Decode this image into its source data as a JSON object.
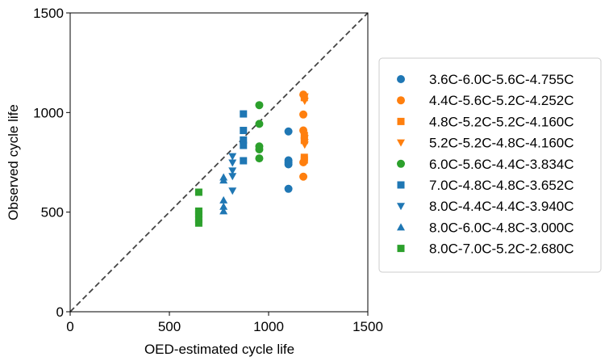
{
  "chart_data": {
    "type": "scatter",
    "title": "",
    "xlabel": "OED-estimated cycle life",
    "ylabel": "Observed cycle life",
    "xlim": [
      0,
      1500
    ],
    "ylim": [
      0,
      1500
    ],
    "xticks": [
      "0",
      "500",
      "1000",
      "1500"
    ],
    "yticks": [
      "0",
      "500",
      "1000",
      "1500"
    ],
    "grid": false,
    "legend_position": "right",
    "reference_line": {
      "style": "dashed",
      "color": "#444444",
      "from": [
        0,
        0
      ],
      "to": [
        1500,
        1500
      ]
    },
    "series": [
      {
        "name": "3.6C-6.0C-5.6C-4.755C",
        "marker": "circle",
        "color": "#1f77b4",
        "points": [
          [
            1100,
            905
          ],
          [
            1100,
            760
          ],
          [
            1100,
            750
          ],
          [
            1100,
            740
          ],
          [
            1100,
            617
          ]
        ]
      },
      {
        "name": "4.4C-5.6C-5.2C-4.252C",
        "marker": "circle",
        "color": "#ff7f0e",
        "points": [
          [
            1175,
            1090
          ],
          [
            1175,
            990
          ],
          [
            1175,
            910
          ],
          [
            1175,
            750
          ],
          [
            1175,
            678
          ]
        ]
      },
      {
        "name": "4.8C-5.2C-5.2C-4.160C",
        "marker": "square",
        "color": "#ff7f0e",
        "points": [
          [
            1180,
            1075
          ],
          [
            1180,
            885
          ],
          [
            1180,
            860
          ],
          [
            1180,
            775
          ],
          [
            1180,
            762
          ]
        ]
      },
      {
        "name": "5.2C-5.2C-4.8C-4.160C",
        "marker": "triangle-down",
        "color": "#ff7f0e",
        "points": [
          [
            1182,
            1080
          ],
          [
            1182,
            1058
          ],
          [
            1182,
            870
          ],
          [
            1182,
            850
          ],
          [
            1182,
            838
          ]
        ]
      },
      {
        "name": "6.0C-5.6C-4.4C-3.834C",
        "marker": "circle",
        "color": "#2ca02c",
        "points": [
          [
            953,
            1037
          ],
          [
            953,
            943
          ],
          [
            953,
            830
          ],
          [
            953,
            815
          ],
          [
            953,
            770
          ]
        ]
      },
      {
        "name": "7.0C-4.8C-4.8C-3.652C",
        "marker": "square",
        "color": "#1f77b4",
        "points": [
          [
            873,
            993
          ],
          [
            873,
            910
          ],
          [
            873,
            862
          ],
          [
            873,
            835
          ],
          [
            873,
            758
          ]
        ]
      },
      {
        "name": "8.0C-4.4C-4.4C-3.940C",
        "marker": "triangle-down",
        "color": "#1f77b4",
        "points": [
          [
            818,
            780
          ],
          [
            818,
            748
          ],
          [
            818,
            708
          ],
          [
            818,
            680
          ],
          [
            818,
            607
          ]
        ]
      },
      {
        "name": "8.0C-6.0C-4.8C-3.000C",
        "marker": "triangle-up",
        "color": "#1f77b4",
        "points": [
          [
            773,
            675
          ],
          [
            773,
            660
          ],
          [
            773,
            560
          ],
          [
            773,
            528
          ],
          [
            773,
            505
          ]
        ]
      },
      {
        "name": "8.0C-7.0C-5.2C-2.680C",
        "marker": "square",
        "color": "#2ca02c",
        "points": [
          [
            648,
            600
          ],
          [
            648,
            505
          ],
          [
            648,
            490
          ],
          [
            648,
            465
          ],
          [
            648,
            445
          ]
        ]
      }
    ]
  }
}
